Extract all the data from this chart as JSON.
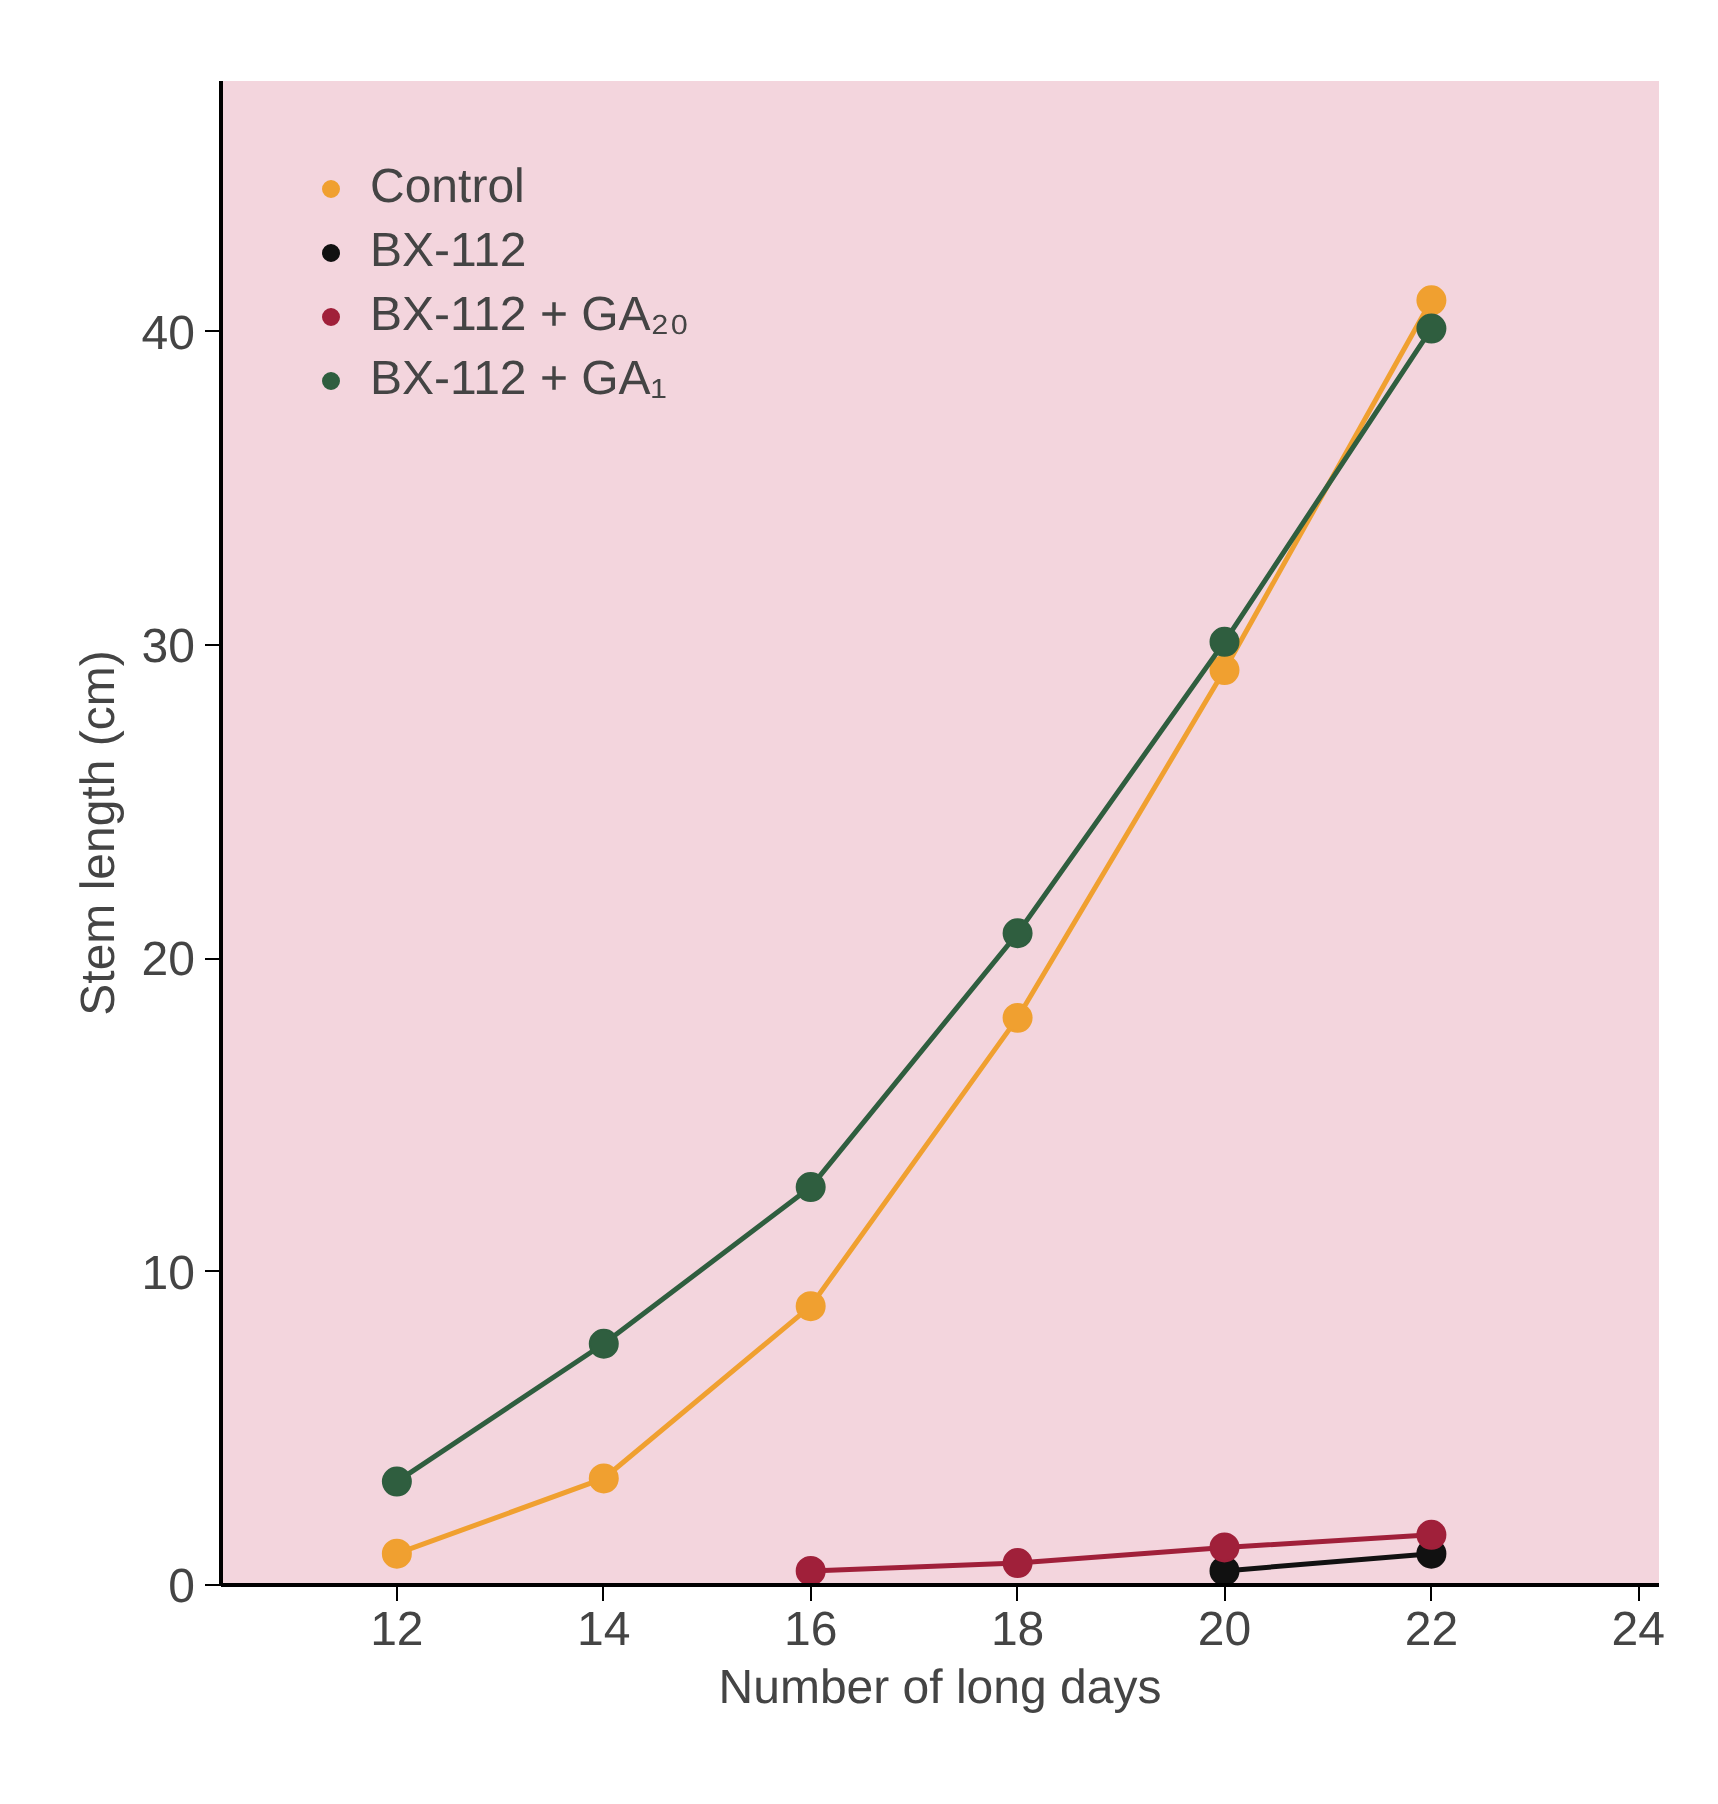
{
  "chart_data": {
    "type": "line",
    "xlabel": "Number of long days",
    "ylabel": "Stem length (cm)",
    "xlim": [
      10.3,
      24.2
    ],
    "ylim": [
      0,
      48
    ],
    "xticks": [
      12,
      14,
      16,
      18,
      20,
      22,
      24
    ],
    "yticks": [
      0,
      10,
      20,
      30,
      40
    ],
    "grid": false,
    "legend": "top left",
    "marker": "circle",
    "line_style": "solid",
    "series": [
      {
        "name": "Control",
        "color": "#f0a030",
        "x": [
          12,
          14,
          16,
          18,
          20,
          22
        ],
        "values": [
          1.0,
          3.4,
          8.9,
          18.1,
          29.2,
          41.0
        ]
      },
      {
        "name": "BX-112",
        "color": "#111111",
        "x": [
          20,
          22
        ],
        "values": [
          0.45,
          1.0
        ]
      },
      {
        "name": "BX-112 + GA₂₀",
        "color": "#a0203a",
        "x": [
          16,
          18,
          20,
          22
        ],
        "values": [
          0.45,
          0.7,
          1.2,
          1.6
        ]
      },
      {
        "name": "BX-112 + GA₁",
        "color": "#2f5e3f",
        "x": [
          12,
          14,
          16,
          18,
          20,
          22
        ],
        "values": [
          3.3,
          7.7,
          12.7,
          20.8,
          30.1,
          40.1
        ]
      }
    ]
  }
}
